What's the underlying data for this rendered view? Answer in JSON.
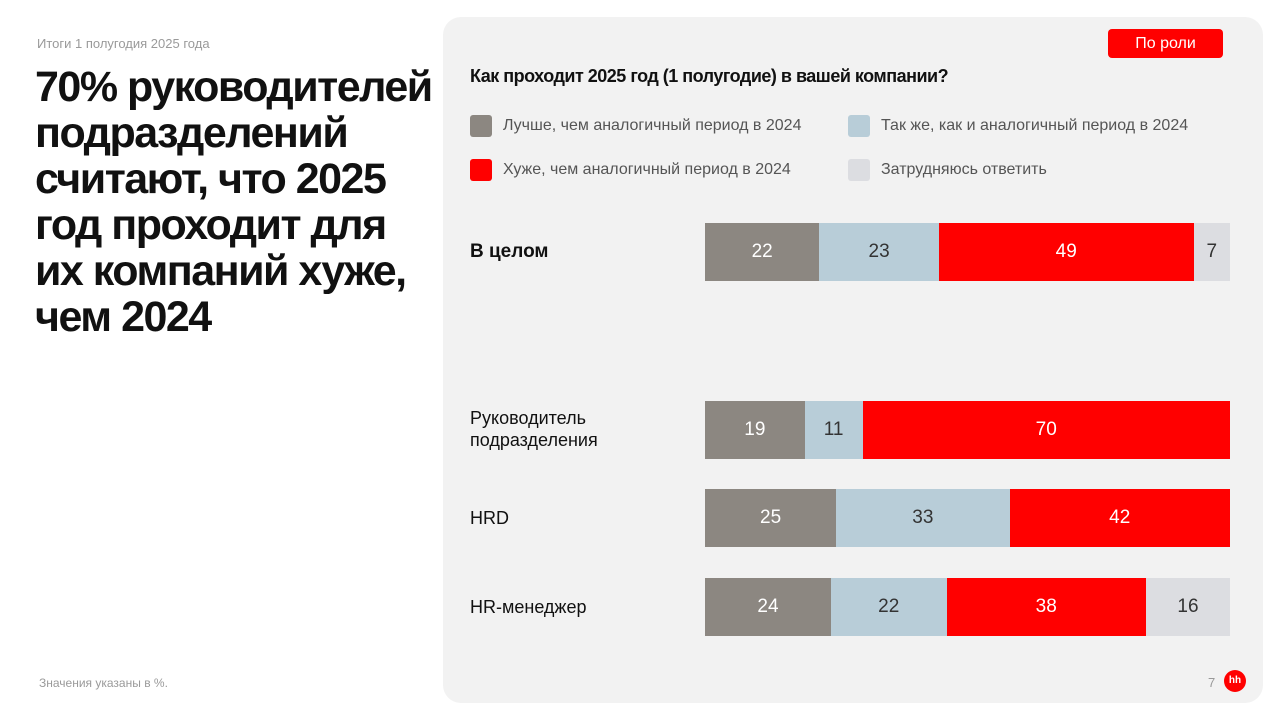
{
  "subtitle": "Итоги 1 полугодия 2025 года",
  "headline": "70% руководителей подразделений считают, что 2025 год проходит для их компаний хуже, чем 2024",
  "footnote": "Значения указаны в %.",
  "page_number": "7",
  "logo_text": "hh",
  "role_button": "По роли",
  "chart_data": {
    "type": "bar",
    "orientation": "horizontal-stacked",
    "title": "Как проходит 2025 год (1 полугодие) в вашей компании?",
    "categories": [
      "В целом",
      "Руководитель подразделения",
      "HRD",
      "HR-менеджер"
    ],
    "series": [
      {
        "name": "Лучше, чем аналогичный период в 2024",
        "color": "#8c8781",
        "values": [
          22,
          19,
          25,
          24
        ]
      },
      {
        "name": "Так же, как и аналогичный период в 2024",
        "color": "#b8cdd8",
        "values": [
          23,
          11,
          33,
          22
        ]
      },
      {
        "name": "Хуже, чем аналогичный период в 2024",
        "color": "#ff0000",
        "values": [
          49,
          70,
          42,
          38
        ]
      },
      {
        "name": "Затрудняюсь ответить",
        "color": "#dcdde1",
        "values": [
          7,
          0,
          0,
          16
        ]
      }
    ]
  }
}
